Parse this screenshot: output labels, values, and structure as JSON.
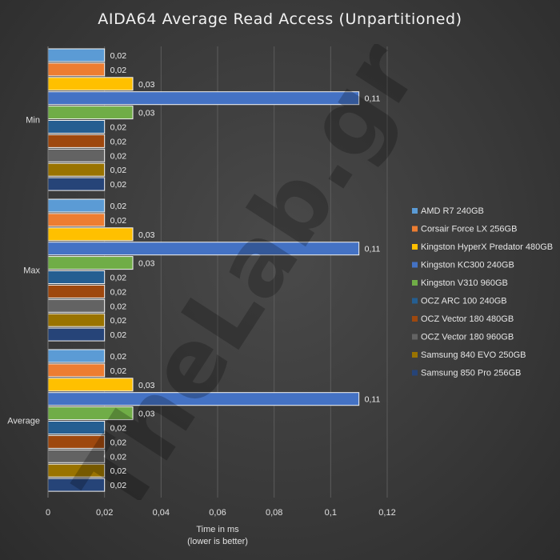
{
  "chart_data": {
    "type": "bar",
    "orientation": "horizontal",
    "title": "AIDA64 Average Read Access (Unpartitioned)",
    "xlabel": "Time in ms",
    "xlabel_note": "(lower is better)",
    "ylabel": "",
    "categories": [
      "Min",
      "Max",
      "Average"
    ],
    "xlim": [
      0,
      0.12
    ],
    "xticks": [
      0,
      0.02,
      0.04,
      0.06,
      0.08,
      0.1,
      0.12
    ],
    "xtick_labels": [
      "0",
      "0,02",
      "0,04",
      "0,06",
      "0,08",
      "0,1",
      "0,12"
    ],
    "grid": true,
    "legend_position": "right",
    "series": [
      {
        "name": "AMD R7 240GB",
        "color": "#5b9bd5",
        "values": [
          0.02,
          0.02,
          0.02
        ],
        "labels": [
          "0,02",
          "0,02",
          "0,02"
        ]
      },
      {
        "name": "Corsair Force LX 256GB",
        "color": "#ed7d31",
        "values": [
          0.02,
          0.02,
          0.02
        ],
        "labels": [
          "0,02",
          "0,02",
          "0,02"
        ]
      },
      {
        "name": "Kingston HyperX Predator 480GB",
        "color": "#ffc000",
        "values": [
          0.03,
          0.03,
          0.03
        ],
        "labels": [
          "0,03",
          "0,03",
          "0,03"
        ]
      },
      {
        "name": "Kingston KC300 240GB",
        "color": "#4472c4",
        "values": [
          0.11,
          0.11,
          0.11
        ],
        "labels": [
          "0,11",
          "0,11",
          "0,11"
        ]
      },
      {
        "name": "Kingston V310 960GB",
        "color": "#70ad47",
        "values": [
          0.03,
          0.03,
          0.03
        ],
        "labels": [
          "0,03",
          "0,03",
          "0,03"
        ]
      },
      {
        "name": "OCZ ARC 100 240GB",
        "color": "#255e91",
        "values": [
          0.02,
          0.02,
          0.02
        ],
        "labels": [
          "0,02",
          "0,02",
          "0,02"
        ]
      },
      {
        "name": "OCZ Vector 180 480GB",
        "color": "#9e480e",
        "values": [
          0.02,
          0.02,
          0.02
        ],
        "labels": [
          "0,02",
          "0,02",
          "0,02"
        ]
      },
      {
        "name": "OCZ Vector 180 960GB",
        "color": "#636363",
        "values": [
          0.02,
          0.02,
          0.02
        ],
        "labels": [
          "0,02",
          "0,02",
          "0,02"
        ]
      },
      {
        "name": "Samsung 840 EVO 250GB",
        "color": "#997300",
        "values": [
          0.02,
          0.02,
          0.02
        ],
        "labels": [
          "0,02",
          "0,02",
          "0,02"
        ]
      },
      {
        "name": "Samsung 850 Pro 256GB",
        "color": "#264478",
        "values": [
          0.02,
          0.02,
          0.02
        ],
        "labels": [
          "0,02",
          "0,02",
          "0,02"
        ]
      }
    ]
  },
  "watermark": {
    "text": "TheLab.gr"
  }
}
